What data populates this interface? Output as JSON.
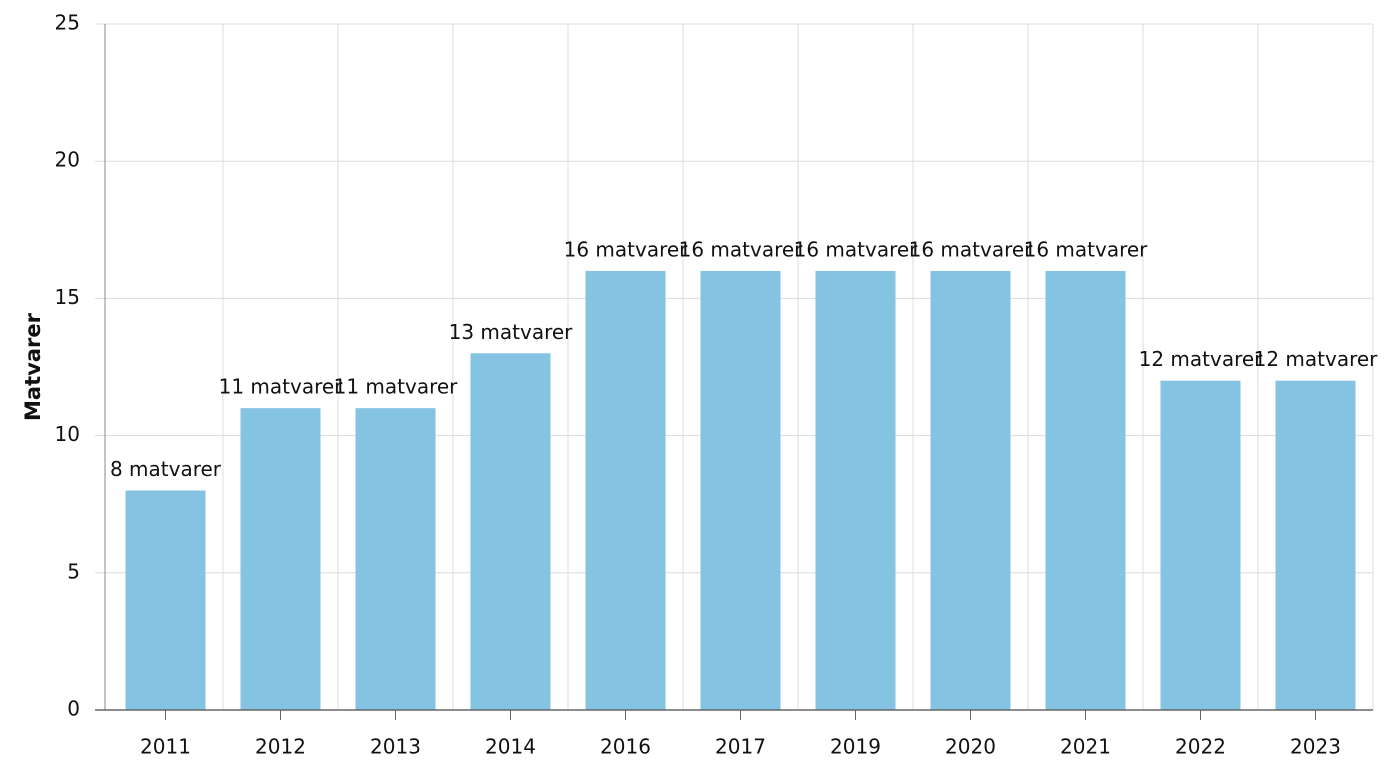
{
  "chart_data": {
    "type": "bar",
    "y_label": "Matvarer",
    "categories": [
      "2011",
      "2012",
      "2013",
      "2014",
      "2016",
      "2017",
      "2019",
      "2020",
      "2021",
      "2022",
      "2023"
    ],
    "values": [
      8,
      11,
      11,
      13,
      16,
      16,
      16,
      16,
      16,
      12,
      12
    ],
    "value_labels": [
      "8 matvarer",
      "11 matvarer",
      "11 matvarer",
      "13 matvarer",
      "16 matvarer",
      "16 matvarer",
      "16 matvarer",
      "16 matvarer",
      "16 matvarer",
      "12 matvarer",
      "12 matvarer"
    ],
    "color": "#85c3e2",
    "ylim": [
      0,
      25
    ],
    "yticks": [
      0,
      5,
      10,
      15,
      20,
      25
    ],
    "grid": true
  }
}
